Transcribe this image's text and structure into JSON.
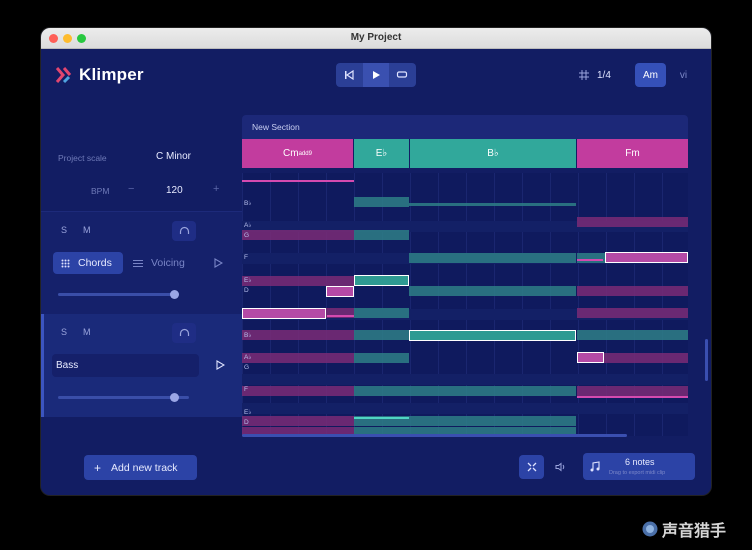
{
  "window": {
    "title": "My Project"
  },
  "brand": {
    "name": "Klimper",
    "accent": "#e2466f"
  },
  "transport": {
    "icons": [
      "skip-back-icon",
      "play-icon",
      "loop-icon"
    ]
  },
  "quantize": {
    "value": "1/4",
    "icon": "grid-icon"
  },
  "key": {
    "selected": "Am",
    "other": "vi"
  },
  "settings": {
    "scale_label": "Project scale",
    "scale_value": "C Minor",
    "bpm_label": "BPM",
    "bpm_value": "120",
    "minus": "−",
    "plus": "+"
  },
  "tracks": [
    {
      "solo": "S",
      "mute": "M",
      "tabs": {
        "chords": "Chords",
        "voicing": "Voicing"
      },
      "volume": 0.95
    },
    {
      "solo": "S",
      "mute": "M",
      "name": "Bass",
      "volume": 0.92
    }
  ],
  "section": {
    "label": "New Section"
  },
  "chords": [
    {
      "name": "Cm",
      "sup": "add9",
      "color": "#c23c9e"
    },
    {
      "name": "E♭",
      "sup": "",
      "color": "#31a89b"
    },
    {
      "name": "B♭",
      "sup": "",
      "color": "#31a89b"
    },
    {
      "name": "Fm",
      "sup": "",
      "color": "#c23c9e"
    }
  ],
  "piano_roll": {
    "note_labels": [
      "B♭",
      "A♭",
      "G",
      "F",
      "E♭",
      "D",
      "B♭",
      "A♭",
      "G",
      "F",
      "E♭",
      "D"
    ]
  },
  "footer": {
    "add_track": "Add new track",
    "notes_count": "6 notes",
    "notes_hint": "Drag to export midi clip"
  },
  "watermark": "声音猎手",
  "colors": {
    "teal": "#2e7f86",
    "magenta": "#7a2c76",
    "bg": "#121d63"
  }
}
